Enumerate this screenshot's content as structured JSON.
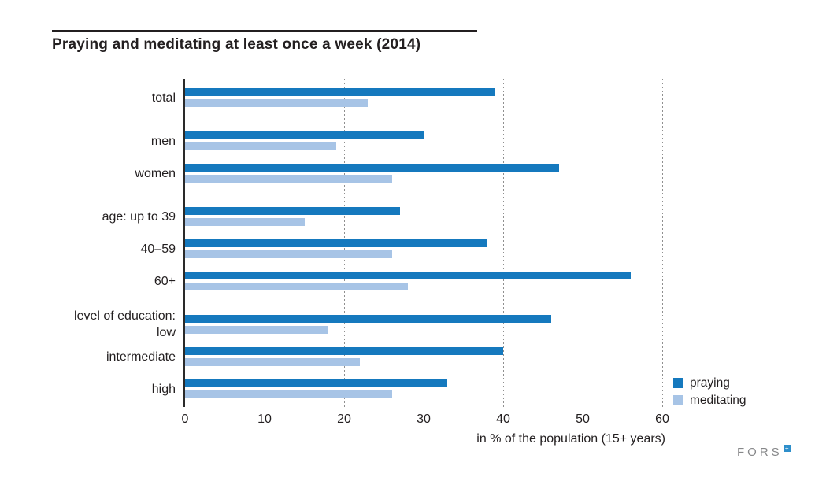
{
  "chart_data": {
    "type": "bar",
    "orientation": "horizontal",
    "title": "Praying and meditating at least once a week (2014)",
    "categories": [
      "total",
      "men",
      "women",
      "age: up to 39",
      "40–59",
      "60+",
      [
        "level of education:",
        "low"
      ],
      "intermediate",
      "high"
    ],
    "category_sections": [
      0,
      1,
      1,
      2,
      2,
      2,
      3,
      3,
      3
    ],
    "series": [
      {
        "name": "praying",
        "color": "#1579be",
        "values": [
          39,
          30,
          47,
          27,
          38,
          56,
          46,
          40,
          33
        ]
      },
      {
        "name": "meditating",
        "color": "#a7c4e6",
        "values": [
          23,
          19,
          26,
          15,
          26,
          28,
          18,
          22,
          26
        ]
      }
    ],
    "xlabel": "in % of the population (15+ years)",
    "xlim": [
      0,
      60
    ],
    "x_ticks": [
      0,
      10,
      20,
      30,
      40,
      50,
      60
    ],
    "grid": "dashed-vertical-gridlines",
    "legend_position": "bottom-right",
    "axis_color": "#2a2a2a",
    "gridline_color": "#8f8f8f",
    "text_color": "#231f20"
  },
  "logo": {
    "text": "FORS",
    "mark": "+",
    "mark_color": "#2e8fcb",
    "text_color": "#87888a"
  }
}
